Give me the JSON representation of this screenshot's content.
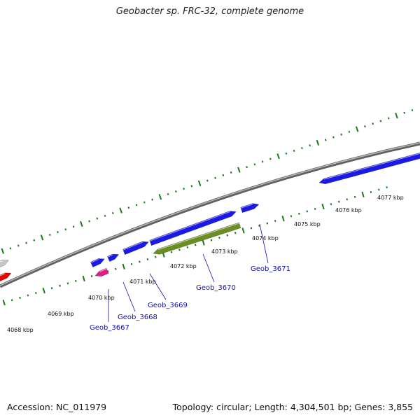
{
  "title": "Geobacter sp. FRC-32, complete genome",
  "footer": {
    "accession": "Accession: NC_011979",
    "stats": "Topology: circular; Length: 4,304,501 bp; Genes: 3,855"
  },
  "colors": {
    "forward_gene": "#1a1ae6",
    "highlighted_gene": "#6b8e23",
    "pink_gene": "#e6198a",
    "red_gene": "#e60000",
    "gray_gene": "#c8c8c8",
    "tick": "#1a7a1a",
    "backbone": "#808080",
    "gene_label": "#1010b0"
  },
  "kbp_labels": [
    "4068 kbp",
    "4069 kbp",
    "4070 kbp",
    "4071 kbp",
    "4072 kbp",
    "4073 kbp",
    "4074 kbp",
    "4075 kbp",
    "4076 kbp",
    "4077 kbp"
  ],
  "gene_labels": [
    "Geob_3667",
    "Geob_3668",
    "Geob_3669",
    "Geob_3670",
    "Geob_3671"
  ]
}
